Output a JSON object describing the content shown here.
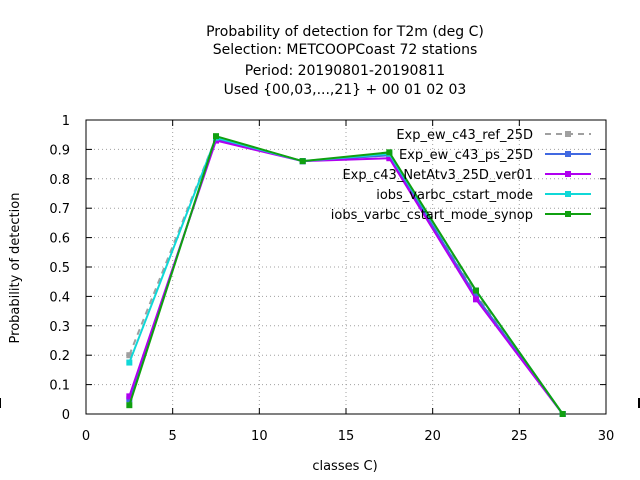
{
  "chart_data": {
    "type": "line",
    "title_lines": [
      "Probability of detection  for T2m (deg C)",
      "Selection: METCOOPCoast     72 stations",
      "Period: 20190801-20190811",
      "Used {00,03,...,21} + 00 01 02 03"
    ],
    "xlabel": "classes C)",
    "ylabel": "Probability of detection",
    "xlim": [
      0,
      30
    ],
    "ylim": [
      0,
      1
    ],
    "xticks": [
      0,
      5,
      10,
      15,
      20,
      25,
      30
    ],
    "yticks": [
      0,
      0.1,
      0.2,
      0.3,
      0.4,
      0.5,
      0.6,
      0.7,
      0.8,
      0.9,
      1
    ],
    "xtick_labels": [
      "0",
      "5",
      "10",
      "15",
      "20",
      "25",
      "30"
    ],
    "ytick_labels": [
      "0",
      "0.1",
      "0.2",
      "0.3",
      "0.4",
      "0.5",
      "0.6",
      "0.7",
      "0.8",
      "0.9",
      "1"
    ],
    "grid": true,
    "legend_position": "top-right",
    "x": [
      2.5,
      7.5,
      12.5,
      17.5,
      22.5,
      27.5
    ],
    "series": [
      {
        "name": "Exp_ew_c43_ref_25D",
        "color": "#a0a0a0",
        "dashed": true,
        "values": [
          0.2,
          0.94,
          0.86,
          0.88,
          0.41,
          0.0
        ]
      },
      {
        "name": "Exp_ew_c43_ps_25D",
        "color": "#4169e1",
        "dashed": false,
        "values": [
          0.05,
          0.935,
          0.86,
          0.88,
          0.4,
          0.0
        ]
      },
      {
        "name": "Exp_c43_NetAtv3_25D_ver01",
        "color": "#b000f0",
        "dashed": false,
        "values": [
          0.06,
          0.93,
          0.86,
          0.87,
          0.39,
          0.0
        ]
      },
      {
        "name": "iobs_varbc_cstart_mode",
        "color": "#10d8d8",
        "dashed": false,
        "values": [
          0.175,
          0.94,
          0.86,
          0.885,
          0.42,
          0.0
        ]
      },
      {
        "name": "iobs_varbc_cstart_mode_synop",
        "color": "#10a010",
        "dashed": false,
        "values": [
          0.03,
          0.945,
          0.86,
          0.89,
          0.42,
          0.0
        ]
      }
    ]
  }
}
